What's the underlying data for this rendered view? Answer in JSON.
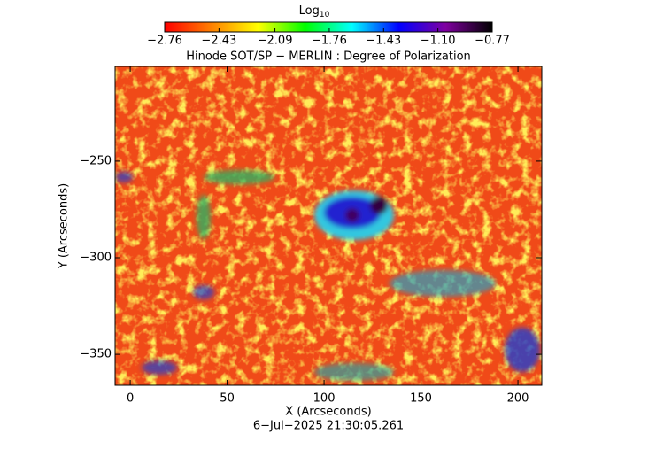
{
  "chart_data": {
    "type": "image",
    "title": "Hinode SOT/SP − MERLIN : Degree of Polarization",
    "xlabel": "X (Arcseconds)",
    "ylabel": "Y (Arcseconds)",
    "footer": "6−Jul−2025 21:30:05.261",
    "xlim": [
      -7.8,
      212.3
    ],
    "xticks": [
      0,
      50,
      100,
      150,
      200
    ],
    "ylim": [
      -366,
      -201
    ],
    "yticks": [
      {
        "value": -250,
        "label": "−250"
      },
      {
        "value": -300,
        "label": "−300"
      },
      {
        "value": -350,
        "label": "−350"
      }
    ],
    "colorbar": {
      "label": "Log",
      "label_sub": "10",
      "lim": [
        -2.76,
        -0.77
      ],
      "colors": [
        "#ff0000",
        "#ff8000",
        "#ffff00",
        "#00ff00",
        "#00ffff",
        "#0000ff",
        "#8000a0",
        "#000000"
      ],
      "ticks": [
        {
          "value": -2.76,
          "label": "−2.76"
        },
        {
          "value": -2.43,
          "label": "−2.43"
        },
        {
          "value": -2.09,
          "label": "−2.09"
        },
        {
          "value": -1.76,
          "label": "−1.76"
        },
        {
          "value": -1.43,
          "label": "−1.43"
        },
        {
          "value": -1.1,
          "label": "−1.10"
        },
        {
          "value": -0.77,
          "label": "−0.77"
        }
      ]
    }
  }
}
